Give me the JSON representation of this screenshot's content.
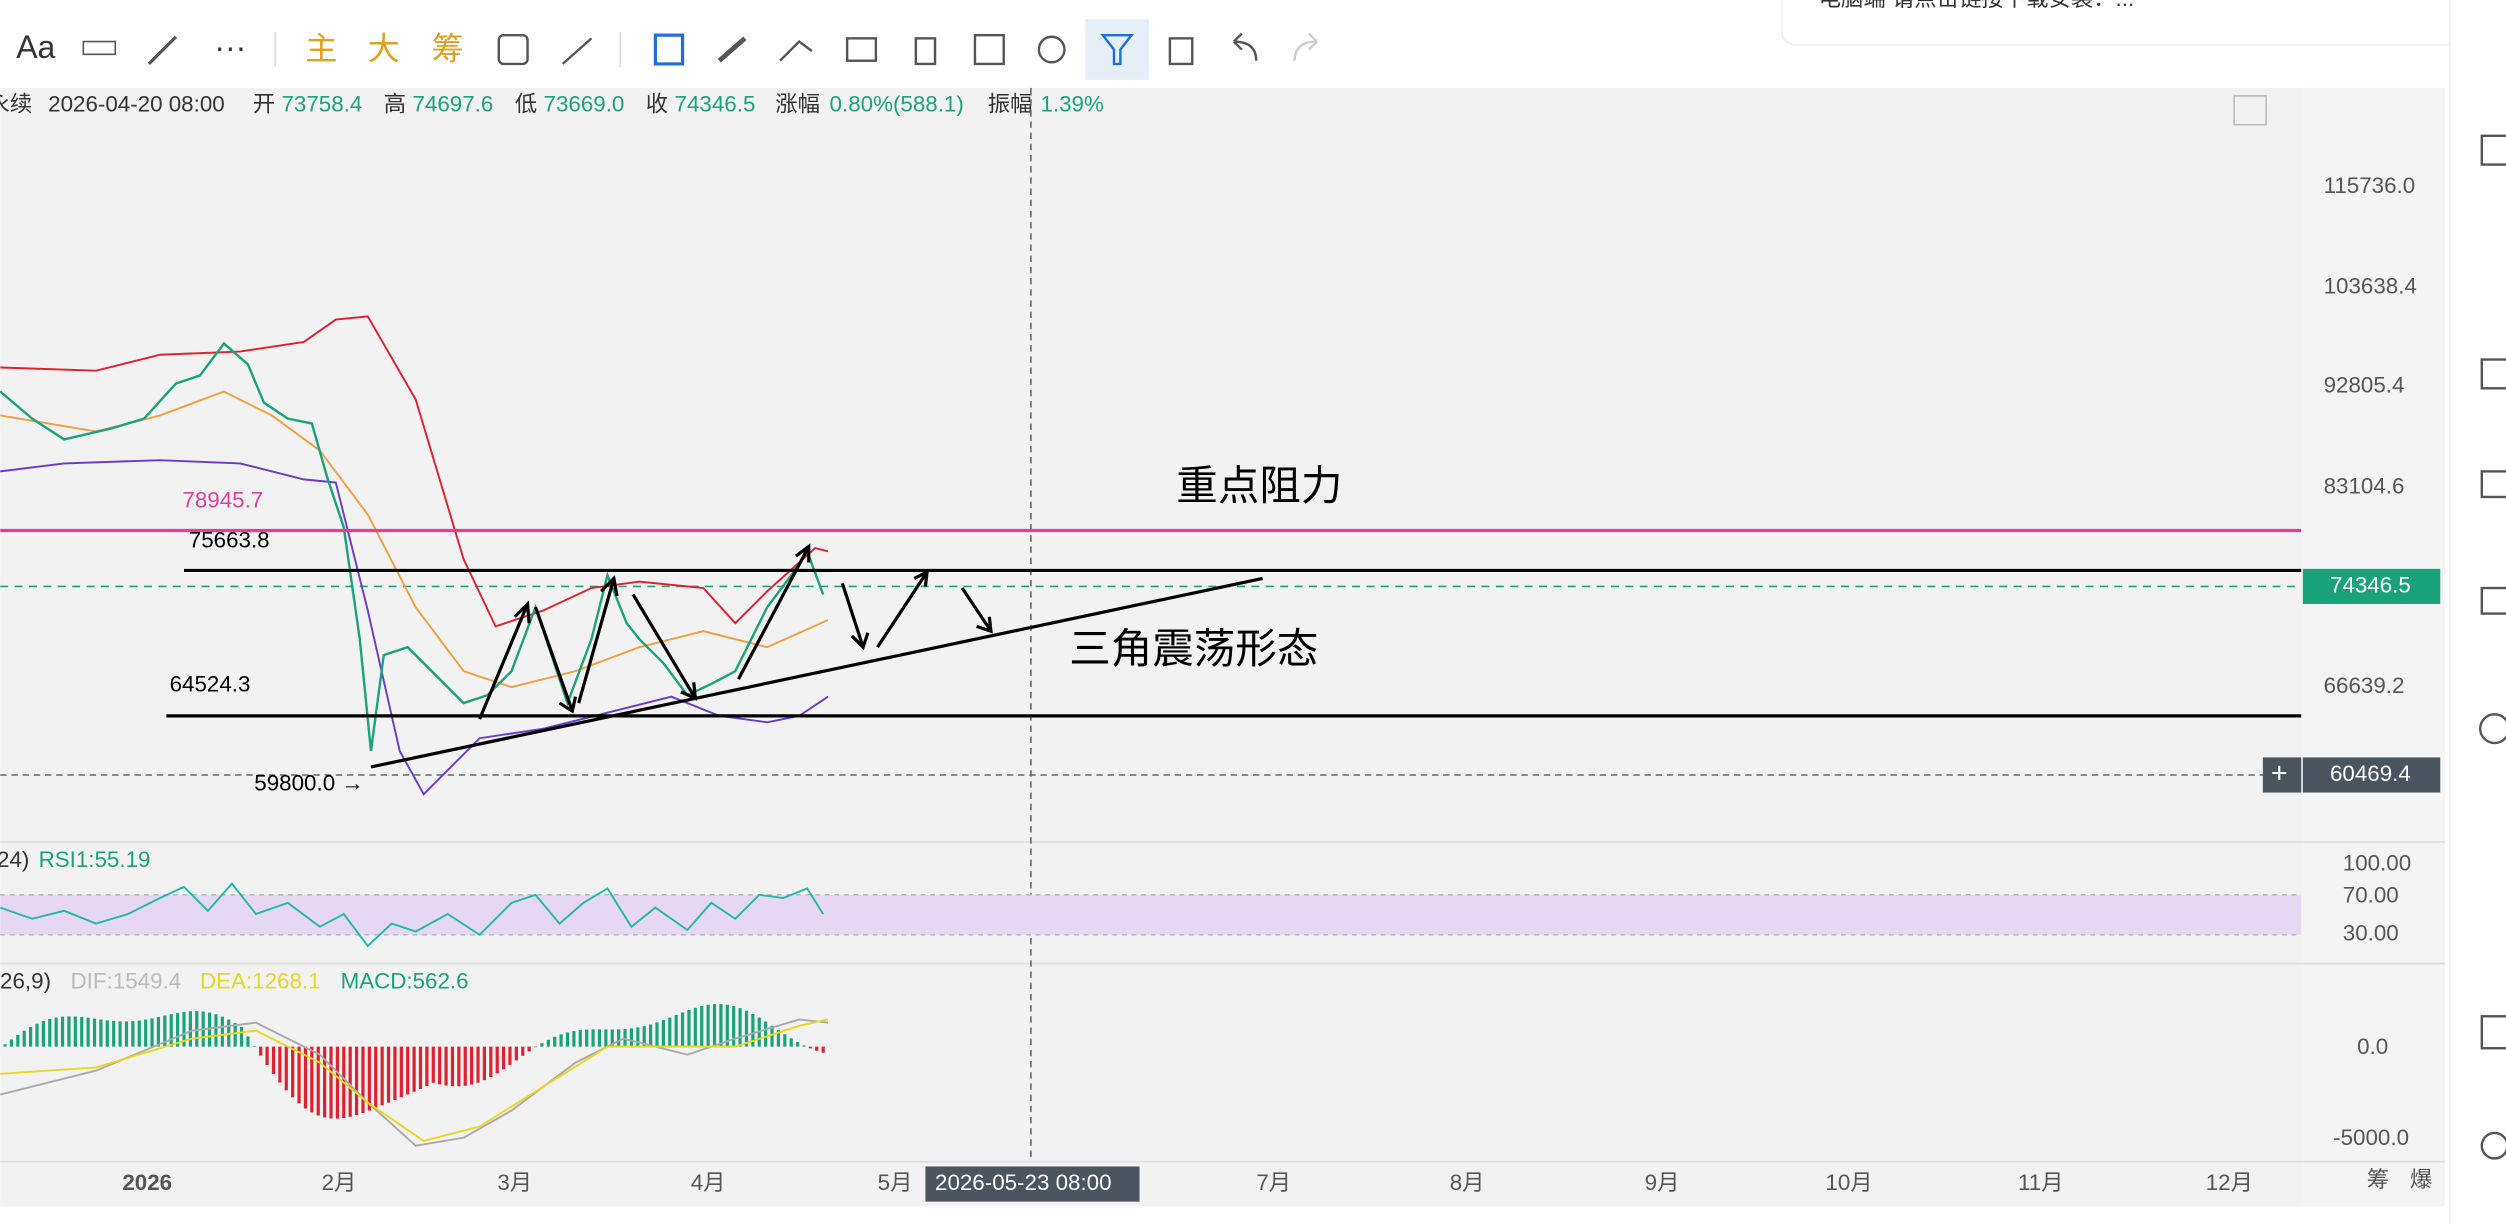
{
  "toolbar": {
    "items": [
      "Aa",
      "主",
      "大",
      "筹"
    ]
  },
  "notification": "电脑端 请点击链接下载安装：...",
  "info_bar": {
    "symbol": "永续",
    "date": "2026-04-20 08:00",
    "open_label": "开",
    "open": "73758.4",
    "high_label": "高",
    "high": "74697.6",
    "low_label": "低",
    "low": "73669.0",
    "close_label": "收",
    "close": "74346.5",
    "change_label": "涨幅",
    "change": "0.80%(588.1)",
    "amplitude_label": "振幅",
    "amplitude": "1.39%"
  },
  "price_axis": {
    "labels": [
      "115736.0",
      "103638.4",
      "92805.4",
      "83104.6",
      "66639.2"
    ],
    "current": "74346.5",
    "crosshair": "60469.4"
  },
  "annotations": {
    "resistance": "重点阻力",
    "pattern": "三角震荡形态",
    "levels": [
      "78945.7",
      "75663.8",
      "64524.3",
      "59800.0 →"
    ]
  },
  "rsi": {
    "params": "24)",
    "value": "RSI1:55.19",
    "axis": [
      "100.00",
      "70.00",
      "30.00"
    ]
  },
  "macd": {
    "params": ",26,9)",
    "dif": "DIF:1549.4",
    "dea": "DEA:1268.1",
    "macd": "MACD:562.6",
    "axis": [
      "0.0",
      "-5000.0"
    ]
  },
  "time_axis": {
    "labels": [
      "2026",
      "2月",
      "3月",
      "4月",
      "5月",
      "7月",
      "8月",
      "9月",
      "10月",
      "11月",
      "12月"
    ],
    "crosshair": "2026-05-23 08:00",
    "right": [
      "筹",
      "爆"
    ]
  }
}
